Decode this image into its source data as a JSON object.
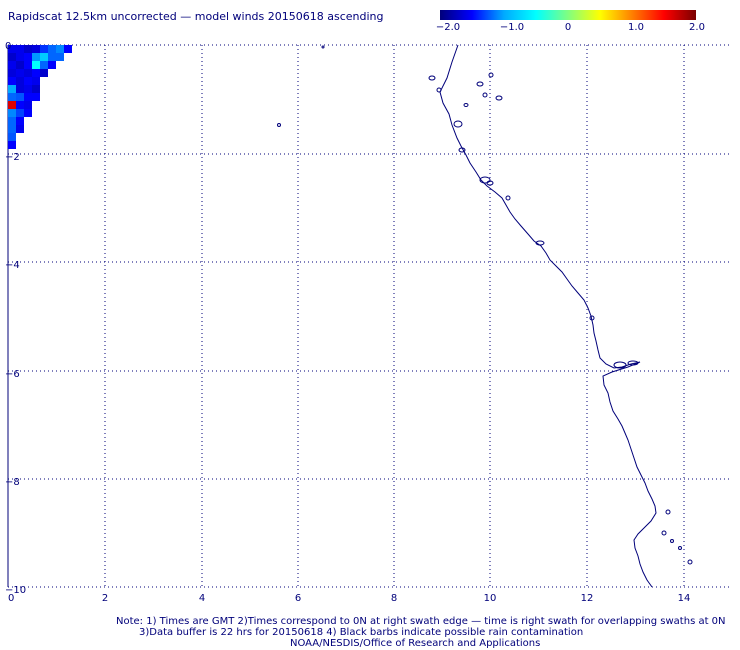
{
  "title": "Rapidscat 12.5km uncorrected — model winds 20150618 ascending",
  "colorbar": {
    "ticks": [
      "−2.0",
      "−1.0",
      "0",
      "1.0",
      "2.0"
    ],
    "colors": [
      "#00007a",
      "#0000ff",
      "#00aaff",
      "#00ffff",
      "#80ff80",
      "#ffff00",
      "#ff8000",
      "#ff0000",
      "#7a0000"
    ]
  },
  "axes": {
    "x_ticks": [
      "0",
      "2",
      "4",
      "6",
      "8",
      "10",
      "12",
      "14"
    ],
    "y_ticks": [
      "0",
      "−2",
      "−4",
      "−6",
      "−8",
      "−10"
    ]
  },
  "notes": {
    "line1": "Note: 1) Times are GMT 2)Times correspond to 0N at right swath edge — time is right swath for overlapping swaths at 0N",
    "line2": "3)Data buffer is 22 hrs for 20150618 4) Black barbs indicate possible rain contamination",
    "line3": "NOAA/NESDIS/Office of Research and Applications"
  },
  "colors": {
    "axis": "#00007a",
    "grid": "#00007a",
    "coast": "#00007a"
  }
}
